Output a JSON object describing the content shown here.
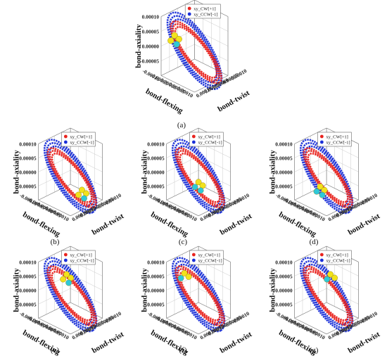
{
  "figure": {
    "captions": [
      "(a)",
      "(b)",
      "(c)",
      "(d)",
      "(e)",
      "(f)",
      "(g)"
    ]
  },
  "chart_data": [
    {
      "panel": "(a)",
      "type": "scatter",
      "title": "",
      "xlabel": "bond-twist",
      "ylabel": "bond-flexing",
      "zlabel": "bond-axiality",
      "ticks": {
        "x": [
          "-0.00010",
          "-0.00005",
          "0.00000",
          "0.00005",
          "0.00010"
        ],
        "y": [
          "-0.00010",
          "-0.00005",
          "0.00000",
          "0.00005",
          "0.00010"
        ],
        "z": [
          "-0.00005",
          "0.00000",
          "0.00005",
          "0.00010"
        ]
      },
      "zlim": [
        -5e-05,
        0.0001
      ],
      "legend_position": "top",
      "series": [
        {
          "name": "xy_CW[+1]",
          "color": "#e8231e"
        },
        {
          "name": "xy_CCW[-1]",
          "color": "#1a2fd8"
        }
      ],
      "markers": {
        "yellow": 3,
        "cyan": 1
      },
      "cluster_position": "upper-left"
    },
    {
      "panel": "(b)",
      "type": "scatter",
      "title": "",
      "xlabel": "bond-twist",
      "ylabel": "bond-flexing",
      "zlabel": "bond-axiality",
      "ticks": {
        "x": [
          "-0.00010",
          "-0.00005",
          "0.00000",
          "0.00005",
          "0.00010"
        ],
        "y": [
          "-0.00010",
          "-0.00005",
          "0.00000",
          "0.00005",
          "0.00010"
        ],
        "z": [
          "-0.00005",
          "0.00000",
          "0.00005",
          "0.00010"
        ]
      },
      "zlim": [
        -5e-05,
        0.0001
      ],
      "legend_position": "top",
      "series": [
        {
          "name": "xy_CW[+1]",
          "color": "#e8231e"
        },
        {
          "name": "xy_CCW[-1]",
          "color": "#1a2fd8"
        }
      ],
      "markers": {
        "yellow": 3,
        "cyan": 1
      },
      "cluster_position": "right"
    },
    {
      "panel": "(c)",
      "type": "scatter",
      "title": "",
      "xlabel": "bond-twist",
      "ylabel": "bond-flexing",
      "zlabel": "bond-axiality",
      "ticks": {
        "x": [
          "-0.00010",
          "-0.00005",
          "0.00000",
          "0.00005",
          "0.00010"
        ],
        "y": [
          "-0.00010",
          "-0.00005",
          "0.00000",
          "0.00005",
          "0.00010"
        ],
        "z": [
          "-0.00005",
          "0.00000",
          "0.00005",
          "0.00010"
        ]
      },
      "zlim": [
        -5e-05,
        0.0001
      ],
      "legend_position": "top",
      "series": [
        {
          "name": "xy_CW[+1]",
          "color": "#e8231e"
        },
        {
          "name": "xy_CCW[-1]",
          "color": "#1a2fd8"
        }
      ],
      "markers": {
        "yellow": 2,
        "cyan": 2
      },
      "cluster_position": "center"
    },
    {
      "panel": "(d)",
      "type": "scatter",
      "title": "",
      "xlabel": "bond-twist",
      "ylabel": "bond-flexing",
      "zlabel": "bond-axiality",
      "ticks": {
        "x": [
          "-0.00010",
          "-0.00005",
          "0.00000",
          "0.00005",
          "0.00010"
        ],
        "y": [
          "-0.00010",
          "-0.00005",
          "0.00000",
          "0.00005",
          "0.00010"
        ],
        "z": [
          "-0.00005",
          "0.00000",
          "0.00005",
          "0.00010"
        ]
      },
      "zlim": [
        -5e-05,
        0.0001
      ],
      "legend_position": "top",
      "series": [
        {
          "name": "xy_CW[+1]",
          "color": "#e8231e"
        },
        {
          "name": "xy_CCW[-1]",
          "color": "#1a2fd8"
        }
      ],
      "markers": {
        "yellow": 2,
        "cyan": 2
      },
      "cluster_position": "center-left"
    },
    {
      "panel": "(e)",
      "type": "scatter",
      "title": "",
      "xlabel": "bond-twist",
      "ylabel": "bond-flexing",
      "zlabel": "bond-axiality",
      "ticks": {
        "x": [
          "-0.00010",
          "-0.00005",
          "0.00000",
          "0.00005",
          "0.00010"
        ],
        "y": [
          "-0.00010",
          "-0.00005",
          "0.00000",
          "0.00005",
          "0.00010"
        ],
        "z": [
          "-0.00005",
          "0.00000",
          "0.00005",
          "0.00010"
        ]
      },
      "zlim": [
        -5e-05,
        0.0001
      ],
      "legend_position": "top",
      "series": [
        {
          "name": "xy_CW[+1]",
          "color": "#e8231e"
        },
        {
          "name": "xy_CCW[-1]",
          "color": "#1a2fd8"
        }
      ],
      "markers": {
        "yellow": 3,
        "cyan": 1
      },
      "cluster_position": "top"
    },
    {
      "panel": "(f)",
      "type": "scatter",
      "title": "",
      "xlabel": "bond-twist",
      "ylabel": "bond-flexing",
      "zlabel": "bond-axiality",
      "ticks": {
        "x": [
          "-0.00010",
          "-0.00005",
          "0.00000",
          "0.00005",
          "0.00010"
        ],
        "y": [
          "-0.00010",
          "-0.00005",
          "0.00000",
          "0.00005",
          "0.00010"
        ],
        "z": [
          "-0.00005",
          "0.00000",
          "0.00005",
          "0.00010"
        ]
      },
      "zlim": [
        -5e-05,
        0.0001
      ],
      "legend_position": "top",
      "series": [
        {
          "name": "xy_CW[+1]",
          "color": "#e8231e"
        },
        {
          "name": "xy_CCW[-1]",
          "color": "#1a2fd8"
        }
      ],
      "markers": {
        "yellow": 2,
        "cyan": 1
      },
      "cluster_position": "top-left"
    },
    {
      "panel": "(g)",
      "type": "scatter",
      "title": "",
      "xlabel": "bond-twist",
      "ylabel": "bond-flexing",
      "zlabel": "bond-axiality",
      "ticks": {
        "x": [
          "-0.00010",
          "-0.00005",
          "0.00000",
          "0.00005",
          "0.00010"
        ],
        "y": [
          "-0.00010",
          "-0.00005",
          "0.00000",
          "0.00005",
          "0.00010"
        ],
        "z": [
          "-0.00005",
          "0.00000",
          "0.00005",
          "0.00010"
        ]
      },
      "zlim": [
        -5e-05,
        0.0001
      ],
      "legend_position": "top",
      "series": [
        {
          "name": "xy_CW[+1]",
          "color": "#e8231e"
        },
        {
          "name": "xy_CCW[-1]",
          "color": "#1a2fd8"
        }
      ],
      "markers": {
        "yellow": 2,
        "cyan": 1
      },
      "cluster_position": "top-right"
    }
  ]
}
